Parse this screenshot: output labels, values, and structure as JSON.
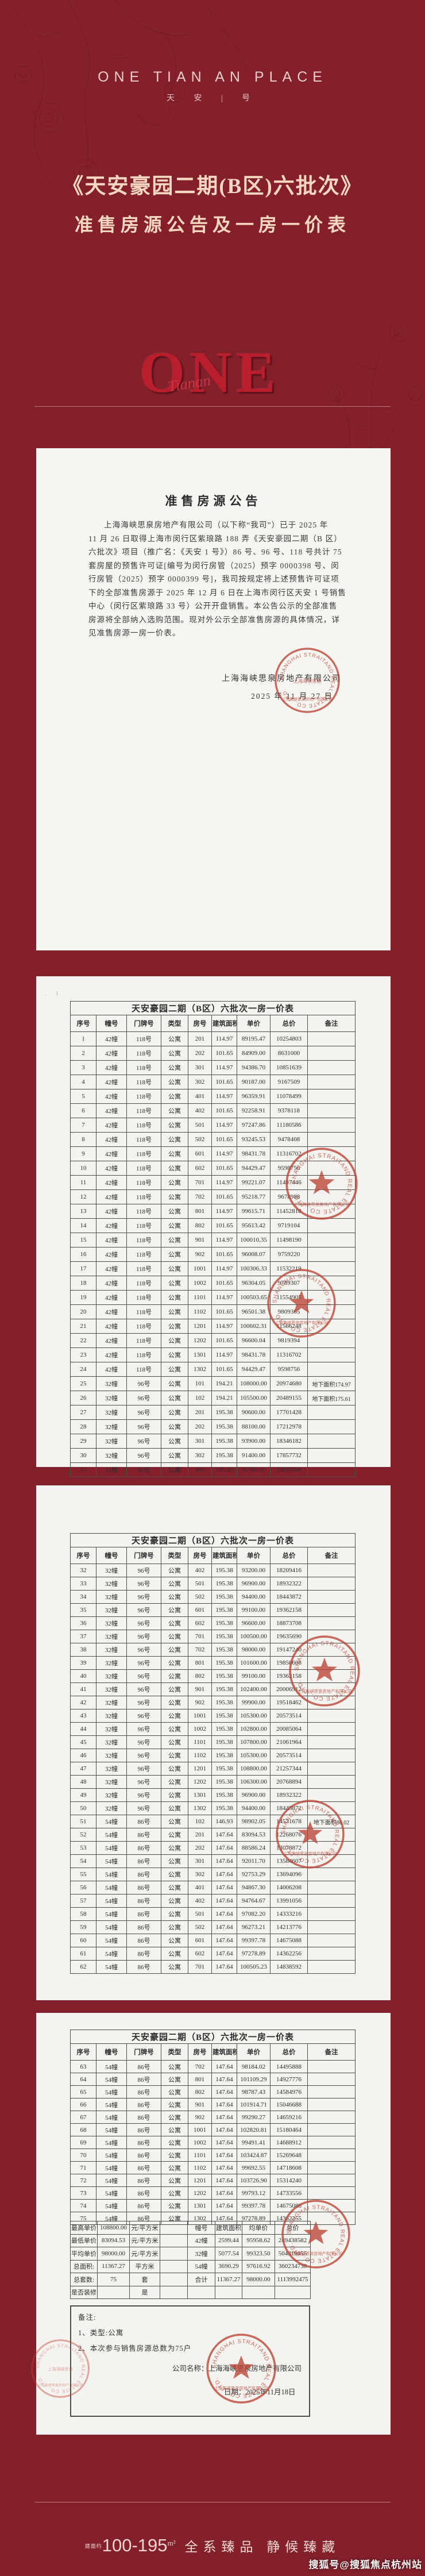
{
  "header": {
    "brand_en": "ONE TIAN AN PLACE",
    "brand_cn": "天 安 | 号",
    "title_line1": "《天安豪园二期(B区)六批次》",
    "title_line2": "准售房源公告及一房一价表",
    "watermark_word": "ONE",
    "watermark_script": "Tianan"
  },
  "announcement": {
    "title": "准售房源公告",
    "lines": [
      "上海海峡思泉房地产有限公司（以下称“我司”）已于 2025 年",
      "11 月 26 日取得上海市闵行区紫琅路 188 弄《天安豪园二期（B 区）",
      "六批次》项目（推广名：《天安 1 号》）86 号、96 号、118 号共计 75",
      "套房屋的预售许可证[编号为闵行房管（2025）预字 0000398 号、闵",
      "行房管（2025）预字 0000399 号]，我司按规定将上述预售许可证项",
      "下的全部准售房源于 2025 年 12 月 6 日在上海市闵行区天安 1 号销售",
      "中心（闵行区紫琅路 33 号）公开开盘销售。本公告公示的全部准售",
      "房源将全部纳入选购范围。现对外公示全部准售房源的具体情况，详",
      "见准售房源一房一价表。"
    ],
    "signature": "上海海峡思泉房地产有限公司",
    "date": "2025 年 11 月 27 日"
  },
  "price_table": {
    "title": "天安豪园二期（B区）六批次一房一价表",
    "columns": [
      "序号",
      "幢号",
      "门牌号",
      "类型",
      "房号",
      "建筑面积",
      "单价",
      "总价",
      "备注"
    ],
    "page_row_ranges": {
      "page2": [
        0,
        31
      ],
      "page3": [
        31,
        62
      ],
      "page4": [
        62,
        75
      ]
    },
    "rows": [
      [
        "1",
        "42幢",
        "118号",
        "公寓",
        "201",
        "114.97",
        "89195.47",
        "10254803",
        ""
      ],
      [
        "2",
        "42幢",
        "118号",
        "公寓",
        "202",
        "101.65",
        "84909.00",
        "8631000",
        ""
      ],
      [
        "3",
        "42幢",
        "118号",
        "公寓",
        "301",
        "114.97",
        "94386.70",
        "10851639",
        ""
      ],
      [
        "4",
        "42幢",
        "118号",
        "公寓",
        "302",
        "101.65",
        "90187.00",
        "9167509",
        ""
      ],
      [
        "5",
        "42幢",
        "118号",
        "公寓",
        "401",
        "114.97",
        "96359.91",
        "11078499",
        ""
      ],
      [
        "6",
        "42幢",
        "118号",
        "公寓",
        "402",
        "101.65",
        "92258.91",
        "9378118",
        ""
      ],
      [
        "7",
        "42幢",
        "118号",
        "公寓",
        "501",
        "114.97",
        "97247.86",
        "11180586",
        ""
      ],
      [
        "8",
        "42幢",
        "118号",
        "公寓",
        "502",
        "101.65",
        "93245.53",
        "9478408",
        ""
      ],
      [
        "9",
        "42幢",
        "118号",
        "公寓",
        "601",
        "114.97",
        "98431.78",
        "11316702",
        ""
      ],
      [
        "10",
        "42幢",
        "118号",
        "公寓",
        "602",
        "101.65",
        "94429.47",
        "9598756",
        ""
      ],
      [
        "11",
        "42幢",
        "118号",
        "公寓",
        "701",
        "114.97",
        "99221.07",
        "11407446",
        ""
      ],
      [
        "12",
        "42幢",
        "118号",
        "公寓",
        "702",
        "101.65",
        "95218.77",
        "9678988",
        ""
      ],
      [
        "13",
        "42幢",
        "118号",
        "公寓",
        "801",
        "114.97",
        "99615.71",
        "11452818",
        ""
      ],
      [
        "14",
        "42幢",
        "118号",
        "公寓",
        "802",
        "101.65",
        "95613.42",
        "9719104",
        ""
      ],
      [
        "15",
        "42幢",
        "118号",
        "公寓",
        "901",
        "114.97",
        "100010.35",
        "11498190",
        ""
      ],
      [
        "16",
        "42幢",
        "118号",
        "公寓",
        "902",
        "101.65",
        "96008.07",
        "9759220",
        ""
      ],
      [
        "17",
        "42幢",
        "118号",
        "公寓",
        "1001",
        "114.97",
        "100306.33",
        "11532219",
        ""
      ],
      [
        "18",
        "42幢",
        "118号",
        "公寓",
        "1002",
        "101.65",
        "96304.05",
        "9789307",
        ""
      ],
      [
        "19",
        "42幢",
        "118号",
        "公寓",
        "1101",
        "114.97",
        "100503.65",
        "11554905",
        ""
      ],
      [
        "20",
        "42幢",
        "118号",
        "公寓",
        "1102",
        "101.65",
        "96501.38",
        "9809365",
        ""
      ],
      [
        "21",
        "42幢",
        "118号",
        "公寓",
        "1201",
        "114.97",
        "100602.31",
        "11566248",
        ""
      ],
      [
        "22",
        "42幢",
        "118号",
        "公寓",
        "1202",
        "101.65",
        "96600.04",
        "9819394",
        ""
      ],
      [
        "23",
        "42幢",
        "118号",
        "公寓",
        "1301",
        "114.97",
        "98431.78",
        "11316702",
        ""
      ],
      [
        "24",
        "42幢",
        "118号",
        "公寓",
        "1302",
        "101.65",
        "94429.47",
        "9598756",
        ""
      ],
      [
        "25",
        "32幢",
        "96号",
        "公寓",
        "101",
        "194.21",
        "108000.00",
        "20974680",
        "地下面积174.97"
      ],
      [
        "26",
        "32幢",
        "96号",
        "公寓",
        "102",
        "194.21",
        "105500.00",
        "20489155",
        "地下面积175.61"
      ],
      [
        "27",
        "32幢",
        "96号",
        "公寓",
        "201",
        "195.38",
        "90600.00",
        "17701428",
        ""
      ],
      [
        "28",
        "32幢",
        "96号",
        "公寓",
        "202",
        "195.38",
        "88100.00",
        "17212978",
        ""
      ],
      [
        "29",
        "32幢",
        "96号",
        "公寓",
        "301",
        "195.38",
        "93900.00",
        "18346182",
        ""
      ],
      [
        "30",
        "32幢",
        "96号",
        "公寓",
        "302",
        "195.38",
        "91400.00",
        "17857732",
        ""
      ],
      [
        "31",
        "32幢",
        "96号",
        "公寓",
        "401",
        "195.38",
        "95700.00",
        "18697866",
        ""
      ],
      [
        "32",
        "32幢",
        "96号",
        "公寓",
        "402",
        "195.38",
        "93200.00",
        "18209416",
        ""
      ],
      [
        "33",
        "32幢",
        "96号",
        "公寓",
        "501",
        "195.38",
        "96900.00",
        "18932322",
        ""
      ],
      [
        "34",
        "32幢",
        "96号",
        "公寓",
        "502",
        "195.38",
        "94400.00",
        "18443872",
        ""
      ],
      [
        "35",
        "32幢",
        "96号",
        "公寓",
        "601",
        "195.38",
        "99100.00",
        "19362158",
        ""
      ],
      [
        "36",
        "32幢",
        "96号",
        "公寓",
        "602",
        "195.38",
        "96600.00",
        "18873708",
        ""
      ],
      [
        "37",
        "32幢",
        "96号",
        "公寓",
        "701",
        "195.38",
        "100500.00",
        "19635690",
        ""
      ],
      [
        "38",
        "32幢",
        "96号",
        "公寓",
        "702",
        "195.38",
        "98000.00",
        "19147240",
        ""
      ],
      [
        "39",
        "32幢",
        "96号",
        "公寓",
        "801",
        "195.38",
        "101600.00",
        "19850608",
        ""
      ],
      [
        "40",
        "32幢",
        "96号",
        "公寓",
        "802",
        "195.38",
        "99100.00",
        "19362158",
        ""
      ],
      [
        "41",
        "32幢",
        "96号",
        "公寓",
        "901",
        "195.38",
        "102400.00",
        "20006912",
        ""
      ],
      [
        "42",
        "32幢",
        "96号",
        "公寓",
        "902",
        "195.38",
        "99900.00",
        "19518462",
        ""
      ],
      [
        "43",
        "32幢",
        "96号",
        "公寓",
        "1001",
        "195.38",
        "105300.00",
        "20573514",
        ""
      ],
      [
        "44",
        "32幢",
        "96号",
        "公寓",
        "1002",
        "195.38",
        "102800.00",
        "20085064",
        ""
      ],
      [
        "45",
        "32幢",
        "96号",
        "公寓",
        "1101",
        "195.38",
        "107800.00",
        "21061964",
        ""
      ],
      [
        "46",
        "32幢",
        "96号",
        "公寓",
        "1102",
        "195.38",
        "105300.00",
        "20573514",
        ""
      ],
      [
        "47",
        "32幢",
        "96号",
        "公寓",
        "1201",
        "195.38",
        "108800.00",
        "21257344",
        ""
      ],
      [
        "48",
        "32幢",
        "96号",
        "公寓",
        "1202",
        "195.38",
        "106300.00",
        "20768894",
        ""
      ],
      [
        "49",
        "32幢",
        "96号",
        "公寓",
        "1301",
        "195.38",
        "96900.00",
        "18932322",
        ""
      ],
      [
        "50",
        "32幢",
        "96号",
        "公寓",
        "1302",
        "195.38",
        "94400.00",
        "18443872",
        ""
      ],
      [
        "51",
        "54幢",
        "86号",
        "公寓",
        "102",
        "146.93",
        "98902.05",
        "14531678",
        "地下面积86.02"
      ],
      [
        "52",
        "54幢",
        "86号",
        "公寓",
        "201",
        "147.64",
        "83094.53",
        "12268076",
        ""
      ],
      [
        "53",
        "54幢",
        "86号",
        "公寓",
        "202",
        "147.64",
        "88586.24",
        "13078872",
        ""
      ],
      [
        "54",
        "54幢",
        "86号",
        "公寓",
        "301",
        "147.64",
        "92011.70",
        "13584607",
        ""
      ],
      [
        "55",
        "54幢",
        "86号",
        "公寓",
        "302",
        "147.64",
        "92753.29",
        "13694096",
        ""
      ],
      [
        "56",
        "54幢",
        "86号",
        "公寓",
        "401",
        "147.64",
        "94867.30",
        "14006208",
        ""
      ],
      [
        "57",
        "54幢",
        "86号",
        "公寓",
        "402",
        "147.64",
        "94764.67",
        "13991056",
        ""
      ],
      [
        "58",
        "54幢",
        "86号",
        "公寓",
        "501",
        "147.64",
        "97082.20",
        "14333216",
        ""
      ],
      [
        "59",
        "54幢",
        "86号",
        "公寓",
        "502",
        "147.64",
        "96273.21",
        "14213776",
        ""
      ],
      [
        "60",
        "54幢",
        "86号",
        "公寓",
        "601",
        "147.64",
        "99397.78",
        "14675088",
        ""
      ],
      [
        "61",
        "54幢",
        "86号",
        "公寓",
        "602",
        "147.64",
        "97278.89",
        "14362256",
        ""
      ],
      [
        "62",
        "54幢",
        "86号",
        "公寓",
        "701",
        "147.64",
        "100505.23",
        "14838592",
        ""
      ],
      [
        "63",
        "54幢",
        "86号",
        "公寓",
        "702",
        "147.64",
        "98184.02",
        "14495888",
        ""
      ],
      [
        "64",
        "54幢",
        "86号",
        "公寓",
        "801",
        "147.64",
        "101109.29",
        "14927776",
        ""
      ],
      [
        "65",
        "54幢",
        "86号",
        "公寓",
        "802",
        "147.64",
        "98787.43",
        "14584976",
        ""
      ],
      [
        "66",
        "54幢",
        "86号",
        "公寓",
        "901",
        "147.64",
        "101914.71",
        "15046688",
        ""
      ],
      [
        "67",
        "54幢",
        "86号",
        "公寓",
        "902",
        "147.64",
        "99290.27",
        "14659216",
        ""
      ],
      [
        "68",
        "54幢",
        "86号",
        "公寓",
        "1001",
        "147.64",
        "102820.81",
        "15180464",
        ""
      ],
      [
        "69",
        "54幢",
        "86号",
        "公寓",
        "1002",
        "147.64",
        "99491.41",
        "14688912",
        ""
      ],
      [
        "70",
        "54幢",
        "86号",
        "公寓",
        "1101",
        "147.64",
        "103424.87",
        "15269648",
        ""
      ],
      [
        "71",
        "54幢",
        "86号",
        "公寓",
        "1102",
        "147.64",
        "99692.55",
        "14718608",
        ""
      ],
      [
        "72",
        "54幢",
        "86号",
        "公寓",
        "1201",
        "147.64",
        "103726.90",
        "15314240",
        ""
      ],
      [
        "73",
        "54幢",
        "86号",
        "公寓",
        "1202",
        "147.64",
        "99793.12",
        "14733556",
        ""
      ],
      [
        "74",
        "54幢",
        "86号",
        "公寓",
        "1301",
        "147.64",
        "99397.78",
        "14675088",
        ""
      ],
      [
        "75",
        "54幢",
        "86号",
        "公寓",
        "1302",
        "147.64",
        "97278.89",
        "14362255",
        ""
      ]
    ]
  },
  "summary": {
    "left_rows": [
      [
        "最高单价",
        "108800.00",
        "元/平方米"
      ],
      [
        "最低单价",
        "83094.53",
        "元/平方米"
      ],
      [
        "平均单价",
        "98000.00",
        "元/平方米"
      ],
      [
        "总面积:",
        "11367.27",
        "平方米"
      ],
      [
        "总套数:",
        "75",
        "套"
      ],
      [
        "是否装修:",
        "",
        "是"
      ]
    ],
    "right_header": [
      "幢号",
      "建筑面积",
      "均单价",
      "总价"
    ],
    "right_rows": [
      [
        "42幢",
        "2599.44",
        "95958.62",
        "249438582"
      ],
      [
        "32幢",
        "5077.54",
        "99323.50",
        "504319055"
      ],
      [
        "54幢",
        "3690.29",
        "97616.92",
        "360234738"
      ],
      [
        "合计",
        "11367.27",
        "98000.00",
        "1113992475"
      ]
    ]
  },
  "remarks": {
    "lines": [
      "备注:",
      "1、类型:公寓",
      "2、本次参与销售房源总数为75户"
    ],
    "company_line": "公司名称：上海海峡思泉房地产有限公司",
    "date_line": "日期：2025年11月18日"
  },
  "stamp": {
    "text_en": "SHANGHAI STRAITAND REAL ESTATE CO., LTD.",
    "text_cn": "上海海峡思泉房地产有限公司"
  },
  "footer": {
    "range_prefix": "建面约",
    "range": "100-195",
    "range_unit": "m²",
    "slogan": "全系臻品  静候臻藏",
    "watermark": "搜狐号@搜狐焦点杭州站"
  },
  "colors": {
    "background": "#84202b",
    "accent_red": "#ba1e2d",
    "title_pink": "#f6d8c2",
    "logo_pink": "#ecccc7",
    "page_bg": "#f5f3ef",
    "stamp_red": "#ba4334"
  }
}
